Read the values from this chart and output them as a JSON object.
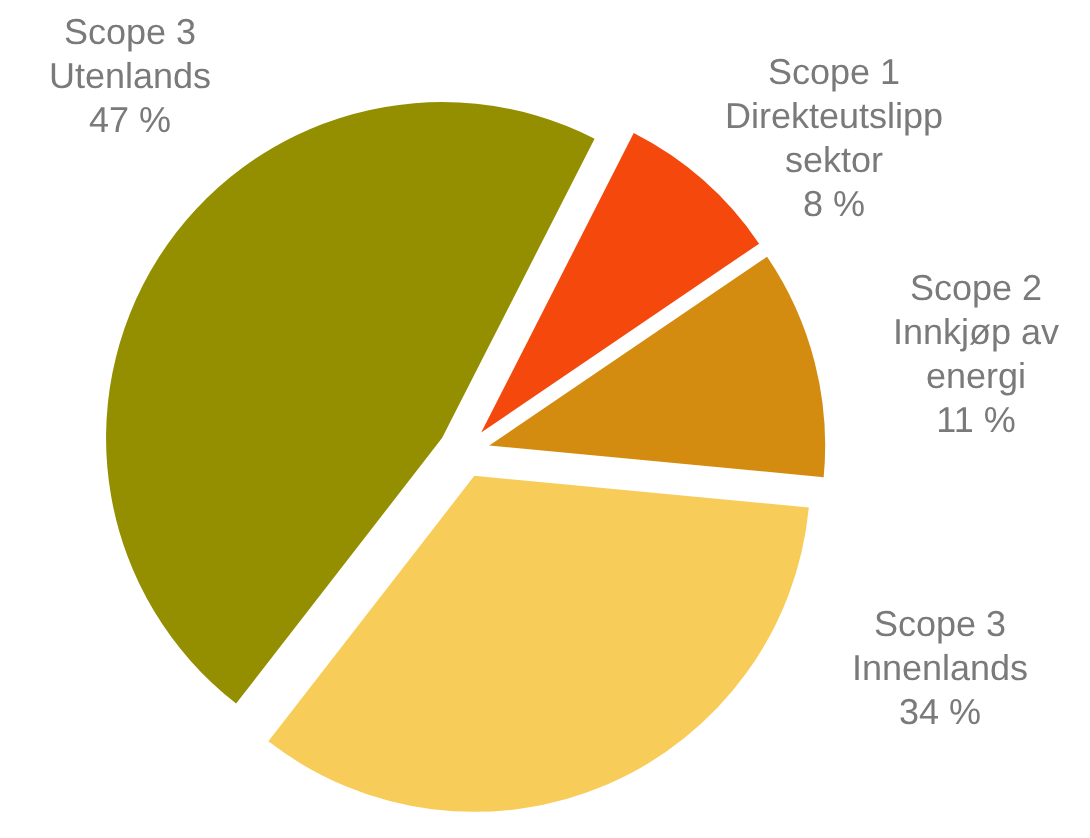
{
  "chart_data": {
    "type": "pie",
    "categories": [
      "Scope 1\nDirekteutslipp\nsektor",
      "Scope 2\nInnkjøp av\nenergi",
      "Scope 3\nInnenlands",
      "Scope 3\nUtenlands"
    ],
    "values": [
      8,
      11,
      34,
      47
    ],
    "colors": [
      "#f4480c",
      "#d48c10",
      "#f8cc58",
      "#948f00"
    ],
    "value_labels": [
      "8 %",
      "11 %",
      "34 %",
      "47 %"
    ]
  }
}
